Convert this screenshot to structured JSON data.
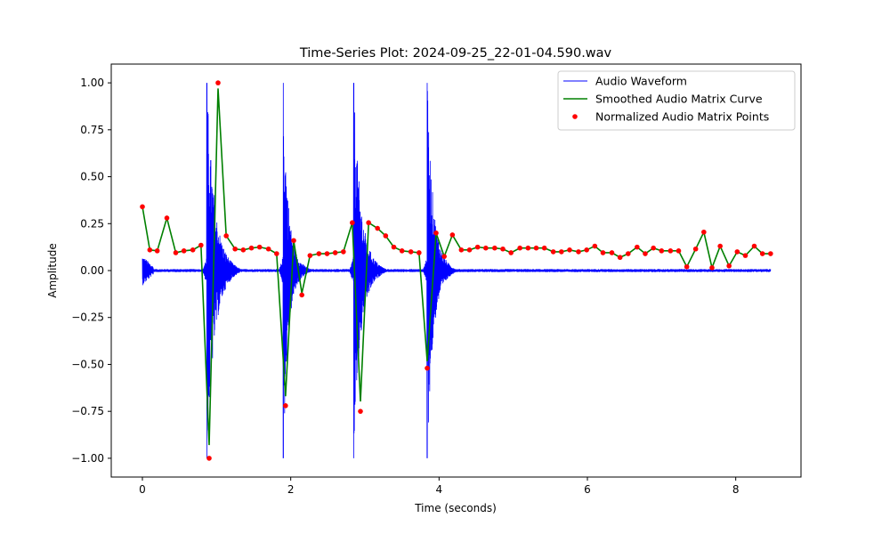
{
  "chart_data": {
    "type": "line",
    "title": "Time-Series Plot: 2024-09-25_22-01-04.590.wav",
    "xlabel": "Time (seconds)",
    "ylabel": "Amplitude",
    "xlim": [
      -0.42,
      8.88
    ],
    "ylim": [
      -1.1,
      1.1
    ],
    "xticks": [
      0,
      2,
      4,
      6,
      8
    ],
    "yticks": [
      -1.0,
      -0.75,
      -0.5,
      -0.25,
      0.0,
      0.25,
      0.5,
      0.75,
      1.0
    ],
    "xtick_labels": [
      "0",
      "2",
      "4",
      "6",
      "8"
    ],
    "ytick_labels": [
      "−1.00",
      "−0.75",
      "−0.50",
      "−0.25",
      "0.00",
      "0.25",
      "0.50",
      "0.75",
      "1.00"
    ],
    "grid": false,
    "legend_position": "top-right",
    "series": [
      {
        "name": "Audio Waveform",
        "kind": "waveform",
        "color": "#0000ff",
        "duration": 8.47,
        "events": [
          {
            "t": 0.87,
            "peak_pos": 1.0,
            "peak_neg": -1.0,
            "decay": 0.28,
            "tail": 0.45
          },
          {
            "t": 1.9,
            "peak_pos": 1.0,
            "peak_neg": -1.0,
            "decay": 0.18,
            "tail": 0.4
          },
          {
            "t": 2.85,
            "peak_pos": 1.0,
            "peak_neg": -1.0,
            "decay": 0.25,
            "tail": 0.45
          },
          {
            "t": 3.84,
            "peak_pos": 1.0,
            "peak_neg": -1.0,
            "decay": 0.22,
            "tail": 0.4
          }
        ],
        "noise_floor": 0.008,
        "start_burst": {
          "t": 0.0,
          "amp": 0.06,
          "len": 0.15
        }
      },
      {
        "name": "Smoothed Audio Matrix Curve",
        "kind": "line",
        "color": "#008000"
      },
      {
        "name": "Normalized Audio Matrix Points",
        "kind": "scatter",
        "color": "#ff0000",
        "x": [
          0.0,
          0.1,
          0.2,
          0.33,
          0.45,
          0.56,
          0.68,
          0.79,
          0.9,
          1.02,
          1.13,
          1.25,
          1.36,
          1.47,
          1.58,
          1.7,
          1.81,
          1.93,
          2.04,
          2.15,
          2.26,
          2.38,
          2.49,
          2.6,
          2.71,
          2.83,
          2.94,
          3.05,
          3.17,
          3.28,
          3.39,
          3.5,
          3.62,
          3.73,
          3.84,
          3.96,
          4.07,
          4.18,
          4.3,
          4.41,
          4.52,
          4.63,
          4.75,
          4.86,
          4.97,
          5.09,
          5.2,
          5.31,
          5.42,
          5.54,
          5.65,
          5.76,
          5.88,
          5.99,
          6.1,
          6.21,
          6.33,
          6.44,
          6.55,
          6.67,
          6.78,
          6.89,
          7.0,
          7.12,
          7.23,
          7.34,
          7.46,
          7.57,
          7.68,
          7.79,
          7.91,
          8.02,
          8.13,
          8.25,
          8.36,
          8.47
        ],
        "y": [
          0.34,
          0.11,
          0.105,
          0.28,
          0.095,
          0.105,
          0.11,
          0.135,
          -1.0,
          1.0,
          0.185,
          0.115,
          0.11,
          0.12,
          0.125,
          0.115,
          0.09,
          -0.72,
          0.16,
          -0.13,
          0.08,
          0.09,
          0.09,
          0.095,
          0.1,
          0.255,
          -0.75,
          0.255,
          0.225,
          0.185,
          0.125,
          0.105,
          0.1,
          0.095,
          -0.52,
          0.2,
          0.075,
          0.19,
          0.11,
          0.11,
          0.125,
          0.12,
          0.12,
          0.115,
          0.095,
          0.12,
          0.12,
          0.12,
          0.12,
          0.1,
          0.1,
          0.11,
          0.1,
          0.11,
          0.13,
          0.095,
          0.095,
          0.07,
          0.09,
          0.125,
          0.09,
          0.12,
          0.105,
          0.105,
          0.105,
          0.02,
          0.115,
          0.205,
          0.015,
          0.13,
          0.025,
          0.1,
          0.08,
          0.13,
          0.09,
          0.09
        ]
      }
    ]
  }
}
